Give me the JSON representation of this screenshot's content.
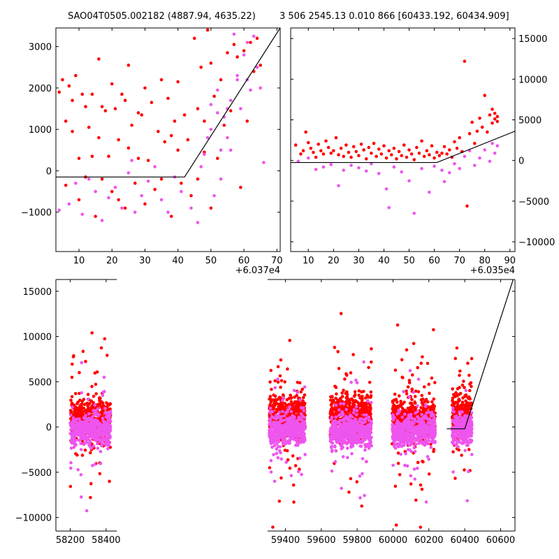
{
  "titles": {
    "left": "SAO04T0505.002182 (4887.94, 4635.22)",
    "right": "3 506 2545.13 0.010 866 [60433.192, 60434.909]"
  },
  "colors": {
    "series_a": "#ff0000",
    "series_b": "#ee55ee",
    "model": "#000000"
  },
  "chart_data": [
    {
      "id": "top-left",
      "type": "scatter",
      "x_offset_label": "+6.037e4",
      "xlim": [
        3,
        71
      ],
      "ylim": [
        -1950,
        3450
      ],
      "xticks": [
        10,
        20,
        30,
        40,
        50,
        60,
        70
      ],
      "yticks": [
        -1000,
        0,
        1000,
        2000,
        3000
      ],
      "y_axis_side": "left",
      "grid": false,
      "model_line": [
        [
          3,
          -150
        ],
        [
          42,
          -150
        ],
        [
          71,
          3450
        ]
      ],
      "series": [
        {
          "color_key": "series_a",
          "points": [
            [
              4,
              1900
            ],
            [
              5,
              2200
            ],
            [
              6,
              1200
            ],
            [
              6,
              -350
            ],
            [
              7,
              2050
            ],
            [
              8,
              1700
            ],
            [
              8,
              950
            ],
            [
              9,
              2300
            ],
            [
              10,
              300
            ],
            [
              10,
              -700
            ],
            [
              11,
              1850
            ],
            [
              12,
              1550
            ],
            [
              12,
              -150
            ],
            [
              13,
              1050
            ],
            [
              14,
              1850
            ],
            [
              14,
              350
            ],
            [
              15,
              -1100
            ],
            [
              16,
              2700
            ],
            [
              16,
              800
            ],
            [
              17,
              1550
            ],
            [
              17,
              -200
            ],
            [
              18,
              1450
            ],
            [
              19,
              350
            ],
            [
              20,
              2100
            ],
            [
              20,
              -500
            ],
            [
              21,
              1500
            ],
            [
              22,
              750
            ],
            [
              22,
              -700
            ],
            [
              23,
              1850
            ],
            [
              24,
              1700
            ],
            [
              24,
              -900
            ],
            [
              25,
              550
            ],
            [
              25,
              2550
            ],
            [
              26,
              1100
            ],
            [
              27,
              -300
            ],
            [
              28,
              1400
            ],
            [
              28,
              300
            ],
            [
              29,
              1350
            ],
            [
              30,
              2000
            ],
            [
              30,
              -800
            ],
            [
              31,
              250
            ],
            [
              32,
              1650
            ],
            [
              33,
              -450
            ],
            [
              34,
              950
            ],
            [
              35,
              2200
            ],
            [
              35,
              -200
            ],
            [
              36,
              700
            ],
            [
              37,
              1750
            ],
            [
              38,
              850
            ],
            [
              38,
              -1100
            ],
            [
              39,
              1200
            ],
            [
              40,
              500
            ],
            [
              40,
              2150
            ],
            [
              41,
              -300
            ],
            [
              42,
              1350
            ],
            [
              43,
              750
            ],
            [
              44,
              -600
            ],
            [
              45,
              3200
            ],
            [
              46,
              1500
            ],
            [
              46,
              -200
            ],
            [
              47,
              2500
            ],
            [
              48,
              450
            ],
            [
              48,
              1200
            ],
            [
              49,
              3400
            ],
            [
              50,
              2600
            ],
            [
              50,
              -900
            ],
            [
              51,
              1800
            ],
            [
              52,
              300
            ],
            [
              53,
              2200
            ],
            [
              54,
              1100
            ],
            [
              55,
              2850
            ],
            [
              56,
              1450
            ],
            [
              57,
              3050
            ],
            [
              58,
              2750
            ],
            [
              59,
              -400
            ],
            [
              60,
              2900
            ],
            [
              61,
              1200
            ],
            [
              62,
              3100
            ],
            [
              63,
              2400
            ],
            [
              64,
              3200
            ],
            [
              65,
              2550
            ]
          ]
        },
        {
          "color_key": "series_b",
          "points": [
            [
              4,
              -950
            ],
            [
              7,
              -800
            ],
            [
              9,
              -300
            ],
            [
              11,
              -1050
            ],
            [
              13,
              -200
            ],
            [
              15,
              -500
            ],
            [
              17,
              -1200
            ],
            [
              19,
              -650
            ],
            [
              21,
              -400
            ],
            [
              23,
              -900
            ],
            [
              25,
              -50
            ],
            [
              26,
              250
            ],
            [
              27,
              -1000
            ],
            [
              29,
              -600
            ],
            [
              31,
              -250
            ],
            [
              33,
              100
            ],
            [
              35,
              -700
            ],
            [
              37,
              -1000
            ],
            [
              39,
              -150
            ],
            [
              41,
              -500
            ],
            [
              44,
              -900
            ],
            [
              46,
              -1250
            ],
            [
              47,
              100
            ],
            [
              48,
              400
            ],
            [
              49,
              800
            ],
            [
              50,
              1600
            ],
            [
              51,
              -600
            ],
            [
              52,
              1950
            ],
            [
              53,
              -200
            ],
            [
              54,
              1300
            ],
            [
              55,
              800
            ],
            [
              56,
              1700
            ],
            [
              57,
              3300
            ],
            [
              58,
              2300
            ],
            [
              59,
              1500
            ],
            [
              60,
              2800
            ],
            [
              61,
              3100
            ],
            [
              62,
              1950
            ],
            [
              63,
              3250
            ],
            [
              64,
              2500
            ],
            [
              65,
              2000
            ],
            [
              66,
              200
            ],
            [
              56,
              500
            ],
            [
              53,
              500
            ],
            [
              50,
              1000
            ],
            [
              52,
              1400
            ],
            [
              55,
              1500
            ],
            [
              58,
              2200
            ],
            [
              61,
              2200
            ]
          ]
        }
      ]
    },
    {
      "id": "top-right",
      "type": "scatter",
      "x_offset_label": "+6.035e4",
      "xlim": [
        3,
        92
      ],
      "ylim": [
        -11200,
        16300
      ],
      "xticks": [
        10,
        20,
        30,
        40,
        50,
        60,
        70,
        80,
        90
      ],
      "yticks": [
        -10000,
        -5000,
        0,
        5000,
        10000,
        15000
      ],
      "y_axis_side": "right",
      "grid": false,
      "model_line": [
        [
          3,
          -250
        ],
        [
          61,
          -250
        ],
        [
          92,
          3600
        ]
      ],
      "series": [
        {
          "color_key": "series_a",
          "points": [
            [
              5,
              1900
            ],
            [
              7,
              800
            ],
            [
              8,
              1200
            ],
            [
              9,
              3500
            ],
            [
              10,
              2200
            ],
            [
              11,
              1500
            ],
            [
              12,
              1000
            ],
            [
              13,
              400
            ],
            [
              14,
              2000
            ],
            [
              15,
              1200
            ],
            [
              16,
              800
            ],
            [
              17,
              2400
            ],
            [
              18,
              1600
            ],
            [
              19,
              900
            ],
            [
              20,
              1200
            ],
            [
              21,
              2800
            ],
            [
              22,
              700
            ],
            [
              23,
              1500
            ],
            [
              24,
              500
            ],
            [
              25,
              1900
            ],
            [
              26,
              1000
            ],
            [
              27,
              400
            ],
            [
              28,
              1700
            ],
            [
              29,
              1100
            ],
            [
              30,
              600
            ],
            [
              31,
              2000
            ],
            [
              32,
              1300
            ],
            [
              33,
              200
            ],
            [
              34,
              1600
            ],
            [
              35,
              900
            ],
            [
              36,
              2100
            ],
            [
              37,
              500
            ],
            [
              38,
              1400
            ],
            [
              39,
              800
            ],
            [
              40,
              1800
            ],
            [
              41,
              300
            ],
            [
              42,
              1200
            ],
            [
              43,
              700
            ],
            [
              44,
              1500
            ],
            [
              45,
              200
            ],
            [
              46,
              1100
            ],
            [
              47,
              600
            ],
            [
              48,
              1900
            ],
            [
              49,
              400
            ],
            [
              50,
              1300
            ],
            [
              51,
              800
            ],
            [
              52,
              100
            ],
            [
              53,
              1600
            ],
            [
              54,
              900
            ],
            [
              55,
              2400
            ],
            [
              56,
              500
            ],
            [
              57,
              1200
            ],
            [
              58,
              700
            ],
            [
              59,
              1800
            ],
            [
              60,
              300
            ],
            [
              61,
              1000
            ],
            [
              62,
              600
            ],
            [
              63,
              900
            ],
            [
              64,
              1700
            ],
            [
              65,
              800
            ],
            [
              66,
              1300
            ],
            [
              67,
              400
            ],
            [
              68,
              2300
            ],
            [
              69,
              1500
            ],
            [
              70,
              2800
            ],
            [
              71,
              1100
            ],
            [
              72,
              12200
            ],
            [
              73,
              -5600
            ],
            [
              74,
              3300
            ],
            [
              75,
              4700
            ],
            [
              76,
              2100
            ],
            [
              77,
              3600
            ],
            [
              78,
              5200
            ],
            [
              79,
              4100
            ],
            [
              80,
              8000
            ],
            [
              81,
              3500
            ],
            [
              82,
              5600
            ],
            [
              83,
              4600
            ],
            [
              84,
              5800
            ],
            [
              85,
              5400
            ],
            [
              84,
              5100
            ],
            [
              83,
              6300
            ],
            [
              85,
              4800
            ]
          ]
        },
        {
          "color_key": "series_b",
          "points": [
            [
              6,
              -100
            ],
            [
              10,
              300
            ],
            [
              13,
              -1100
            ],
            [
              16,
              -800
            ],
            [
              19,
              -500
            ],
            [
              22,
              -3100
            ],
            [
              24,
              -1200
            ],
            [
              27,
              -600
            ],
            [
              30,
              -900
            ],
            [
              33,
              -1300
            ],
            [
              35,
              -400
            ],
            [
              38,
              -1600
            ],
            [
              41,
              -3500
            ],
            [
              42,
              -5800
            ],
            [
              44,
              -800
            ],
            [
              47,
              -1400
            ],
            [
              50,
              -2500
            ],
            [
              52,
              -6500
            ],
            [
              55,
              -1000
            ],
            [
              58,
              -3900
            ],
            [
              60,
              -700
            ],
            [
              63,
              -1200
            ],
            [
              64,
              -2600
            ],
            [
              66,
              -1500
            ],
            [
              68,
              -400
            ],
            [
              70,
              -1000
            ],
            [
              72,
              500
            ],
            [
              74,
              1200
            ],
            [
              76,
              -600
            ],
            [
              78,
              300
            ],
            [
              80,
              1300
            ],
            [
              82,
              -100
            ],
            [
              83,
              2100
            ],
            [
              84,
              900
            ],
            [
              85,
              1800
            ]
          ]
        }
      ]
    },
    {
      "id": "bottom",
      "type": "scatter",
      "xlim": [
        58120,
        60680
      ],
      "ylim": [
        -11500,
        16300
      ],
      "xticks": [
        58200,
        58400,
        59400,
        59600,
        59800,
        60000,
        60200,
        60400,
        60600
      ],
      "yticks": [
        -10000,
        -5000,
        0,
        5000,
        10000,
        15000
      ],
      "y_axis_side": "left",
      "grid": false,
      "model_line": [
        [
          60300,
          -200
        ],
        [
          60400,
          -200
        ],
        [
          60670,
          16300
        ]
      ],
      "gaps": [
        [
          58460,
          59300
        ]
      ],
      "seasons": [
        {
          "x": [
            58200,
            58425
          ],
          "a_center": 800,
          "b_center": -400
        },
        {
          "x": [
            59310,
            59510
          ],
          "a_center": 1400,
          "b_center": -300
        },
        {
          "x": [
            59650,
            59880
          ],
          "a_center": 1300,
          "b_center": -500
        },
        {
          "x": [
            59995,
            60235
          ],
          "a_center": 900,
          "b_center": -400
        },
        {
          "x": [
            60330,
            60440
          ],
          "a_center": 1600,
          "b_center": -300
        }
      ]
    }
  ]
}
